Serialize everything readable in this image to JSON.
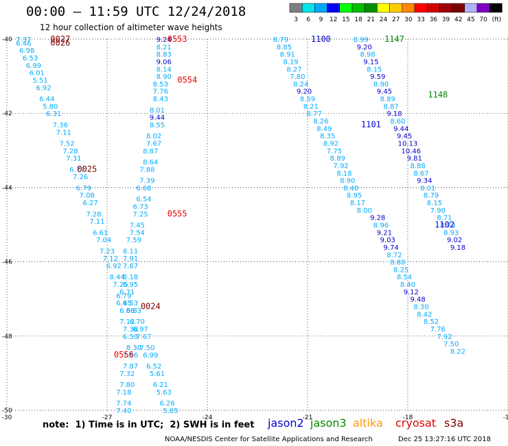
{
  "header": {
    "title": "00:00 — 11:59 UTC 12/24/2018",
    "subtitle": "12 hour collection of altimeter wave heights"
  },
  "legend": {
    "unit": "(ft)",
    "bins": [
      {
        "label": "3",
        "color": "#7f7f7f"
      },
      {
        "label": "6",
        "color": "#00e5e5"
      },
      {
        "label": "9",
        "color": "#00aaff"
      },
      {
        "label": "12",
        "color": "#0000ff"
      },
      {
        "label": "15",
        "color": "#00ff00"
      },
      {
        "label": "18",
        "color": "#00bf00"
      },
      {
        "label": "21",
        "color": "#008f00"
      },
      {
        "label": "24",
        "color": "#ffff00"
      },
      {
        "label": "27",
        "color": "#ffcc00"
      },
      {
        "label": "30",
        "color": "#ff8800"
      },
      {
        "label": "33",
        "color": "#ff0000"
      },
      {
        "label": "36",
        "color": "#d00000"
      },
      {
        "label": "39",
        "color": "#a00000"
      },
      {
        "label": "42",
        "color": "#800000"
      },
      {
        "label": "45",
        "color": "#b0b0ff"
      },
      {
        "label": "70",
        "color": "#8000c0"
      },
      {
        "label": "",
        "color": "#000000"
      }
    ]
  },
  "footer": {
    "note": "note:  1) Time is in UTC;  2) SWH is in feet",
    "credit": "NOAA/NESDIS Center for Satellite Applications and Research",
    "timestamp": "Dec 25 13:27:16 UTC 2018",
    "satellites": [
      {
        "name": "jason2",
        "color": "#0000cc"
      },
      {
        "name": "jason3",
        "color": "#008800"
      },
      {
        "name": "altika",
        "color": "#ff9900"
      },
      {
        "name": "cryosat",
        "color": "#dd0000"
      },
      {
        "name": "s3a",
        "color": "#800000"
      }
    ]
  },
  "chart_data": {
    "type": "scatter",
    "title": "00:00 — 11:59 UTC 12/24/2018",
    "xlim": [
      -30,
      -15
    ],
    "ylim": [
      -50,
      -40
    ],
    "xticks": [
      "-30",
      "-27",
      "-24",
      "-21",
      "-18",
      "-15"
    ],
    "yticks": [
      "-40",
      "-42",
      "-44",
      "-46",
      "-48",
      "-50"
    ],
    "grid": true,
    "pass_labels": [
      {
        "text": "0027",
        "x": -28.4,
        "y": -40.0,
        "color": "#800000"
      },
      {
        "text": "0026",
        "x": -28.4,
        "y": -40.1,
        "color": "#800000"
      },
      {
        "text": "0553",
        "x": -24.9,
        "y": -40.0,
        "color": "#ee0000"
      },
      {
        "text": "0554",
        "x": -24.6,
        "y": -41.1,
        "color": "#ee0000"
      },
      {
        "text": "0025",
        "x": -27.6,
        "y": -43.5,
        "color": "#800000"
      },
      {
        "text": "0555",
        "x": -24.9,
        "y": -44.7,
        "color": "#ee0000"
      },
      {
        "text": "0024",
        "x": -25.7,
        "y": -47.2,
        "color": "#800000"
      },
      {
        "text": "0556",
        "x": -26.5,
        "y": -48.5,
        "color": "#ee0000"
      },
      {
        "text": "1100",
        "x": -20.6,
        "y": -40.0,
        "color": "#0000cc"
      },
      {
        "text": "1147",
        "x": -18.4,
        "y": -40.0,
        "color": "#008800"
      },
      {
        "text": "1148",
        "x": -17.1,
        "y": -41.5,
        "color": "#008800"
      },
      {
        "text": "1101",
        "x": -19.1,
        "y": -42.3,
        "color": "#0000cc"
      },
      {
        "text": "1102",
        "x": -16.9,
        "y": -45.0,
        "color": "#0000cc"
      }
    ],
    "points": [
      {
        "v": "7.37",
        "x": -29.5,
        "y": -40.0,
        "c": "#00aaff"
      },
      {
        "v": "6.46",
        "x": -29.5,
        "y": -40.1,
        "c": "#00aaff"
      },
      {
        "v": "6.98",
        "x": -29.4,
        "y": -40.3,
        "c": "#00aaff"
      },
      {
        "v": "6.53",
        "x": -29.3,
        "y": -40.5,
        "c": "#00aaff"
      },
      {
        "v": "6.99",
        "x": -29.2,
        "y": -40.7,
        "c": "#00aaff"
      },
      {
        "v": "6.01",
        "x": -29.1,
        "y": -40.9,
        "c": "#00aaff"
      },
      {
        "v": "5.51",
        "x": -29.0,
        "y": -41.1,
        "c": "#00aaff"
      },
      {
        "v": "6.92",
        "x": -28.9,
        "y": -41.3,
        "c": "#00aaff"
      },
      {
        "v": "6.44",
        "x": -28.8,
        "y": -41.6,
        "c": "#00aaff"
      },
      {
        "v": "5.80",
        "x": -28.7,
        "y": -41.8,
        "c": "#00aaff"
      },
      {
        "v": "6.31",
        "x": -28.6,
        "y": -42.0,
        "c": "#00aaff"
      },
      {
        "v": "7.36",
        "x": -28.4,
        "y": -42.3,
        "c": "#00aaff"
      },
      {
        "v": "7.11",
        "x": -28.3,
        "y": -42.5,
        "c": "#00aaff"
      },
      {
        "v": "7.52",
        "x": -28.2,
        "y": -42.8,
        "c": "#00aaff"
      },
      {
        "v": "7.28",
        "x": -28.1,
        "y": -43.0,
        "c": "#00aaff"
      },
      {
        "v": "7.31",
        "x": -28.0,
        "y": -43.2,
        "c": "#00aaff"
      },
      {
        "v": "6.77",
        "x": -27.9,
        "y": -43.5,
        "c": "#00aaff"
      },
      {
        "v": "7.26",
        "x": -27.8,
        "y": -43.7,
        "c": "#00aaff"
      },
      {
        "v": "6.79",
        "x": -27.7,
        "y": -44.0,
        "c": "#00aaff"
      },
      {
        "v": "7.08",
        "x": -27.6,
        "y": -44.2,
        "c": "#00aaff"
      },
      {
        "v": "6.27",
        "x": -27.5,
        "y": -44.4,
        "c": "#00aaff"
      },
      {
        "v": "7.28",
        "x": -27.4,
        "y": -44.7,
        "c": "#00aaff"
      },
      {
        "v": "7.11",
        "x": -27.3,
        "y": -44.9,
        "c": "#00aaff"
      },
      {
        "v": "6.61",
        "x": -27.2,
        "y": -45.2,
        "c": "#00aaff"
      },
      {
        "v": "7.04",
        "x": -27.1,
        "y": -45.4,
        "c": "#00aaff"
      },
      {
        "v": "7.23",
        "x": -27.0,
        "y": -45.7,
        "c": "#00aaff"
      },
      {
        "v": "7.12",
        "x": -26.9,
        "y": -45.9,
        "c": "#00aaff"
      },
      {
        "v": "6.92",
        "x": -26.8,
        "y": -46.1,
        "c": "#00aaff"
      },
      {
        "v": "8.44",
        "x": -26.7,
        "y": -46.4,
        "c": "#00aaff"
      },
      {
        "v": "7.25",
        "x": -26.6,
        "y": -46.6,
        "c": "#00aaff"
      },
      {
        "v": "6.79",
        "x": -26.5,
        "y": -46.9,
        "c": "#00aaff"
      },
      {
        "v": "6.45",
        "x": -26.5,
        "y": -47.1,
        "c": "#00aaff"
      },
      {
        "v": "6.86",
        "x": -26.4,
        "y": -47.3,
        "c": "#00aaff"
      },
      {
        "v": "7.12",
        "x": -26.4,
        "y": -47.6,
        "c": "#00aaff"
      },
      {
        "v": "7.38",
        "x": -26.3,
        "y": -47.8,
        "c": "#00aaff"
      },
      {
        "v": "6.50",
        "x": -26.3,
        "y": -48.0,
        "c": "#00aaff"
      },
      {
        "v": "8.30",
        "x": -26.2,
        "y": -48.3,
        "c": "#00aaff"
      },
      {
        "v": "7.86",
        "x": -26.3,
        "y": -48.5,
        "c": "#00aaff"
      },
      {
        "v": "7.87",
        "x": -26.3,
        "y": -48.8,
        "c": "#00aaff"
      },
      {
        "v": "7.32",
        "x": -26.4,
        "y": -49.0,
        "c": "#00aaff"
      },
      {
        "v": "7.80",
        "x": -26.4,
        "y": -49.3,
        "c": "#00aaff"
      },
      {
        "v": "7.18",
        "x": -26.5,
        "y": -49.5,
        "c": "#00aaff"
      },
      {
        "v": "7.74",
        "x": -26.5,
        "y": -49.8,
        "c": "#00aaff"
      },
      {
        "v": "7.40",
        "x": -26.5,
        "y": -50.0,
        "c": "#00aaff"
      },
      {
        "v": "9.24",
        "x": -25.3,
        "y": -40.0,
        "c": "#0000cc"
      },
      {
        "v": "8.21",
        "x": -25.3,
        "y": -40.2,
        "c": "#00aaff"
      },
      {
        "v": "8.83",
        "x": -25.3,
        "y": -40.4,
        "c": "#00aaff"
      },
      {
        "v": "9.06",
        "x": -25.3,
        "y": -40.6,
        "c": "#0000cc"
      },
      {
        "v": "8.14",
        "x": -25.3,
        "y": -40.8,
        "c": "#00aaff"
      },
      {
        "v": "8.90",
        "x": -25.3,
        "y": -41.0,
        "c": "#00aaff"
      },
      {
        "v": "8.53",
        "x": -25.4,
        "y": -41.2,
        "c": "#00aaff"
      },
      {
        "v": "7.76",
        "x": -25.4,
        "y": -41.4,
        "c": "#00aaff"
      },
      {
        "v": "8.43",
        "x": -25.4,
        "y": -41.6,
        "c": "#00aaff"
      },
      {
        "v": "8.01",
        "x": -25.5,
        "y": -41.9,
        "c": "#00aaff"
      },
      {
        "v": "9.44",
        "x": -25.5,
        "y": -42.1,
        "c": "#0000cc"
      },
      {
        "v": "8.55",
        "x": -25.5,
        "y": -42.3,
        "c": "#00aaff"
      },
      {
        "v": "8.02",
        "x": -25.6,
        "y": -42.6,
        "c": "#00aaff"
      },
      {
        "v": "7.67",
        "x": -25.6,
        "y": -42.8,
        "c": "#00aaff"
      },
      {
        "v": "8.87",
        "x": -25.7,
        "y": -43.0,
        "c": "#00aaff"
      },
      {
        "v": "8.64",
        "x": -25.7,
        "y": -43.3,
        "c": "#00aaff"
      },
      {
        "v": "7.88",
        "x": -25.8,
        "y": -43.5,
        "c": "#00aaff"
      },
      {
        "v": "7.39",
        "x": -25.8,
        "y": -43.8,
        "c": "#00aaff"
      },
      {
        "v": "6.68",
        "x": -25.9,
        "y": -44.0,
        "c": "#00aaff"
      },
      {
        "v": "6.54",
        "x": -25.9,
        "y": -44.3,
        "c": "#00aaff"
      },
      {
        "v": "6.73",
        "x": -26.0,
        "y": -44.5,
        "c": "#00aaff"
      },
      {
        "v": "7.25",
        "x": -26.0,
        "y": -44.7,
        "c": "#00aaff"
      },
      {
        "v": "7.45",
        "x": -26.1,
        "y": -45.0,
        "c": "#00aaff"
      },
      {
        "v": "7.54",
        "x": -26.1,
        "y": -45.2,
        "c": "#00aaff"
      },
      {
        "v": "7.59",
        "x": -26.2,
        "y": -45.4,
        "c": "#00aaff"
      },
      {
        "v": "8.11",
        "x": -26.3,
        "y": -45.7,
        "c": "#00aaff"
      },
      {
        "v": "7.91",
        "x": -26.3,
        "y": -45.9,
        "c": "#00aaff"
      },
      {
        "v": "7.67",
        "x": -26.3,
        "y": -46.1,
        "c": "#00aaff"
      },
      {
        "v": "8.18",
        "x": -26.3,
        "y": -46.4,
        "c": "#00aaff"
      },
      {
        "v": "6.95",
        "x": -26.3,
        "y": -46.6,
        "c": "#00aaff"
      },
      {
        "v": "6.71",
        "x": -26.4,
        "y": -46.8,
        "c": "#00aaff"
      },
      {
        "v": "6.53",
        "x": -26.3,
        "y": -47.1,
        "c": "#00aaff"
      },
      {
        "v": "6.83",
        "x": -26.2,
        "y": -47.3,
        "c": "#00aaff"
      },
      {
        "v": "6.70",
        "x": -26.1,
        "y": -47.6,
        "c": "#00aaff"
      },
      {
        "v": "6.97",
        "x": -26.0,
        "y": -47.8,
        "c": "#00aaff"
      },
      {
        "v": "7.67",
        "x": -25.9,
        "y": -48.0,
        "c": "#00aaff"
      },
      {
        "v": "7.50",
        "x": -25.8,
        "y": -48.3,
        "c": "#00aaff"
      },
      {
        "v": "6.99",
        "x": -25.7,
        "y": -48.5,
        "c": "#00aaff"
      },
      {
        "v": "6.52",
        "x": -25.6,
        "y": -48.8,
        "c": "#00aaff"
      },
      {
        "v": "5.61",
        "x": -25.5,
        "y": -49.0,
        "c": "#00aaff"
      },
      {
        "v": "6.21",
        "x": -25.4,
        "y": -49.3,
        "c": "#00aaff"
      },
      {
        "v": "5.63",
        "x": -25.3,
        "y": -49.5,
        "c": "#00aaff"
      },
      {
        "v": "6.26",
        "x": -25.2,
        "y": -49.8,
        "c": "#00aaff"
      },
      {
        "v": "5.85",
        "x": -25.1,
        "y": -50.0,
        "c": "#00aaff"
      },
      {
        "v": "8.79",
        "x": -21.8,
        "y": -40.0,
        "c": "#00aaff"
      },
      {
        "v": "8.85",
        "x": -21.7,
        "y": -40.2,
        "c": "#00aaff"
      },
      {
        "v": "8.91",
        "x": -21.6,
        "y": -40.4,
        "c": "#00aaff"
      },
      {
        "v": "8.19",
        "x": -21.5,
        "y": -40.6,
        "c": "#00aaff"
      },
      {
        "v": "8.27",
        "x": -21.4,
        "y": -40.8,
        "c": "#00aaff"
      },
      {
        "v": "7.80",
        "x": -21.3,
        "y": -41.0,
        "c": "#00aaff"
      },
      {
        "v": "8.24",
        "x": -21.2,
        "y": -41.2,
        "c": "#00aaff"
      },
      {
        "v": "9.20",
        "x": -21.1,
        "y": -41.4,
        "c": "#0000cc"
      },
      {
        "v": "8.59",
        "x": -21.0,
        "y": -41.6,
        "c": "#00aaff"
      },
      {
        "v": "8.21",
        "x": -20.9,
        "y": -41.8,
        "c": "#00aaff"
      },
      {
        "v": "8.77",
        "x": -20.8,
        "y": -42.0,
        "c": "#00aaff"
      },
      {
        "v": "8.26",
        "x": -20.6,
        "y": -42.2,
        "c": "#00aaff"
      },
      {
        "v": "8.49",
        "x": -20.5,
        "y": -42.4,
        "c": "#00aaff"
      },
      {
        "v": "8.35",
        "x": -20.4,
        "y": -42.6,
        "c": "#00aaff"
      },
      {
        "v": "8.92",
        "x": -20.3,
        "y": -42.8,
        "c": "#00aaff"
      },
      {
        "v": "7.75",
        "x": -20.2,
        "y": -43.0,
        "c": "#00aaff"
      },
      {
        "v": "8.89",
        "x": -20.1,
        "y": -43.2,
        "c": "#00aaff"
      },
      {
        "v": "7.92",
        "x": -20.0,
        "y": -43.4,
        "c": "#00aaff"
      },
      {
        "v": "8.18",
        "x": -19.9,
        "y": -43.6,
        "c": "#00aaff"
      },
      {
        "v": "8.90",
        "x": -19.8,
        "y": -43.8,
        "c": "#00aaff"
      },
      {
        "v": "8.40",
        "x": -19.7,
        "y": -44.0,
        "c": "#00aaff"
      },
      {
        "v": "8.95",
        "x": -19.6,
        "y": -44.2,
        "c": "#00aaff"
      },
      {
        "v": "8.17",
        "x": -19.5,
        "y": -44.4,
        "c": "#00aaff"
      },
      {
        "v": "8.00",
        "x": -19.3,
        "y": -44.6,
        "c": "#00aaff"
      },
      {
        "v": "9.28",
        "x": -18.9,
        "y": -44.8,
        "c": "#0000cc"
      },
      {
        "v": "8.96",
        "x": -18.8,
        "y": -45.0,
        "c": "#00aaff"
      },
      {
        "v": "9.21",
        "x": -18.7,
        "y": -45.2,
        "c": "#0000cc"
      },
      {
        "v": "9.03",
        "x": -18.6,
        "y": -45.4,
        "c": "#0000cc"
      },
      {
        "v": "9.74",
        "x": -18.5,
        "y": -45.6,
        "c": "#0000cc"
      },
      {
        "v": "8.72",
        "x": -18.4,
        "y": -45.8,
        "c": "#00aaff"
      },
      {
        "v": "8.88",
        "x": -18.3,
        "y": -46.0,
        "c": "#00aaff"
      },
      {
        "v": "8.25",
        "x": -18.2,
        "y": -46.2,
        "c": "#00aaff"
      },
      {
        "v": "8.54",
        "x": -18.1,
        "y": -46.4,
        "c": "#00aaff"
      },
      {
        "v": "8.40",
        "x": -18.0,
        "y": -46.6,
        "c": "#00aaff"
      },
      {
        "v": "9.12",
        "x": -17.9,
        "y": -46.8,
        "c": "#0000cc"
      },
      {
        "v": "9.48",
        "x": -17.7,
        "y": -47.0,
        "c": "#0000cc"
      },
      {
        "v": "8.30",
        "x": -17.6,
        "y": -47.2,
        "c": "#00aaff"
      },
      {
        "v": "8.42",
        "x": -17.5,
        "y": -47.4,
        "c": "#00aaff"
      },
      {
        "v": "8.52",
        "x": -17.3,
        "y": -47.6,
        "c": "#00aaff"
      },
      {
        "v": "7.76",
        "x": -17.1,
        "y": -47.8,
        "c": "#00aaff"
      },
      {
        "v": "7.92",
        "x": -16.9,
        "y": -48.0,
        "c": "#00aaff"
      },
      {
        "v": "7.50",
        "x": -16.7,
        "y": -48.2,
        "c": "#00aaff"
      },
      {
        "v": "8.22",
        "x": -16.5,
        "y": -48.4,
        "c": "#00aaff"
      },
      {
        "v": "8.99",
        "x": -19.4,
        "y": -40.0,
        "c": "#00aaff"
      },
      {
        "v": "9.20",
        "x": -19.3,
        "y": -40.2,
        "c": "#0000cc"
      },
      {
        "v": "8.98",
        "x": -19.2,
        "y": -40.4,
        "c": "#00aaff"
      },
      {
        "v": "9.15",
        "x": -19.1,
        "y": -40.6,
        "c": "#0000cc"
      },
      {
        "v": "8.15",
        "x": -19.0,
        "y": -40.8,
        "c": "#00aaff"
      },
      {
        "v": "9.59",
        "x": -18.9,
        "y": -41.0,
        "c": "#0000cc"
      },
      {
        "v": "8.90",
        "x": -18.8,
        "y": -41.2,
        "c": "#00aaff"
      },
      {
        "v": "9.45",
        "x": -18.7,
        "y": -41.4,
        "c": "#0000cc"
      },
      {
        "v": "8.89",
        "x": -18.6,
        "y": -41.6,
        "c": "#00aaff"
      },
      {
        "v": "8.87",
        "x": -18.5,
        "y": -41.8,
        "c": "#00aaff"
      },
      {
        "v": "9.18",
        "x": -18.4,
        "y": -42.0,
        "c": "#0000cc"
      },
      {
        "v": "8.60",
        "x": -18.3,
        "y": -42.2,
        "c": "#00aaff"
      },
      {
        "v": "9.44",
        "x": -18.2,
        "y": -42.4,
        "c": "#0000cc"
      },
      {
        "v": "9.45",
        "x": -18.1,
        "y": -42.6,
        "c": "#0000cc"
      },
      {
        "v": "10.13",
        "x": -18.0,
        "y": -42.8,
        "c": "#0000cc"
      },
      {
        "v": "10.46",
        "x": -17.9,
        "y": -43.0,
        "c": "#0000cc"
      },
      {
        "v": "9.81",
        "x": -17.8,
        "y": -43.2,
        "c": "#0000cc"
      },
      {
        "v": "8.88",
        "x": -17.7,
        "y": -43.4,
        "c": "#00aaff"
      },
      {
        "v": "8.67",
        "x": -17.6,
        "y": -43.6,
        "c": "#00aaff"
      },
      {
        "v": "9.34",
        "x": -17.5,
        "y": -43.8,
        "c": "#0000cc"
      },
      {
        "v": "8.01",
        "x": -17.4,
        "y": -44.0,
        "c": "#00aaff"
      },
      {
        "v": "8.79",
        "x": -17.3,
        "y": -44.2,
        "c": "#00aaff"
      },
      {
        "v": "8.15",
        "x": -17.2,
        "y": -44.4,
        "c": "#00aaff"
      },
      {
        "v": "7.90",
        "x": -17.1,
        "y": -44.6,
        "c": "#00aaff"
      },
      {
        "v": "8.71",
        "x": -16.9,
        "y": -44.8,
        "c": "#00aaff"
      },
      {
        "v": "8.74",
        "x": -16.8,
        "y": -45.0,
        "c": "#00aaff"
      },
      {
        "v": "8.93",
        "x": -16.7,
        "y": -45.2,
        "c": "#00aaff"
      },
      {
        "v": "9.02",
        "x": -16.6,
        "y": -45.4,
        "c": "#0000cc"
      },
      {
        "v": "9.18",
        "x": -16.5,
        "y": -45.6,
        "c": "#0000cc"
      }
    ]
  }
}
